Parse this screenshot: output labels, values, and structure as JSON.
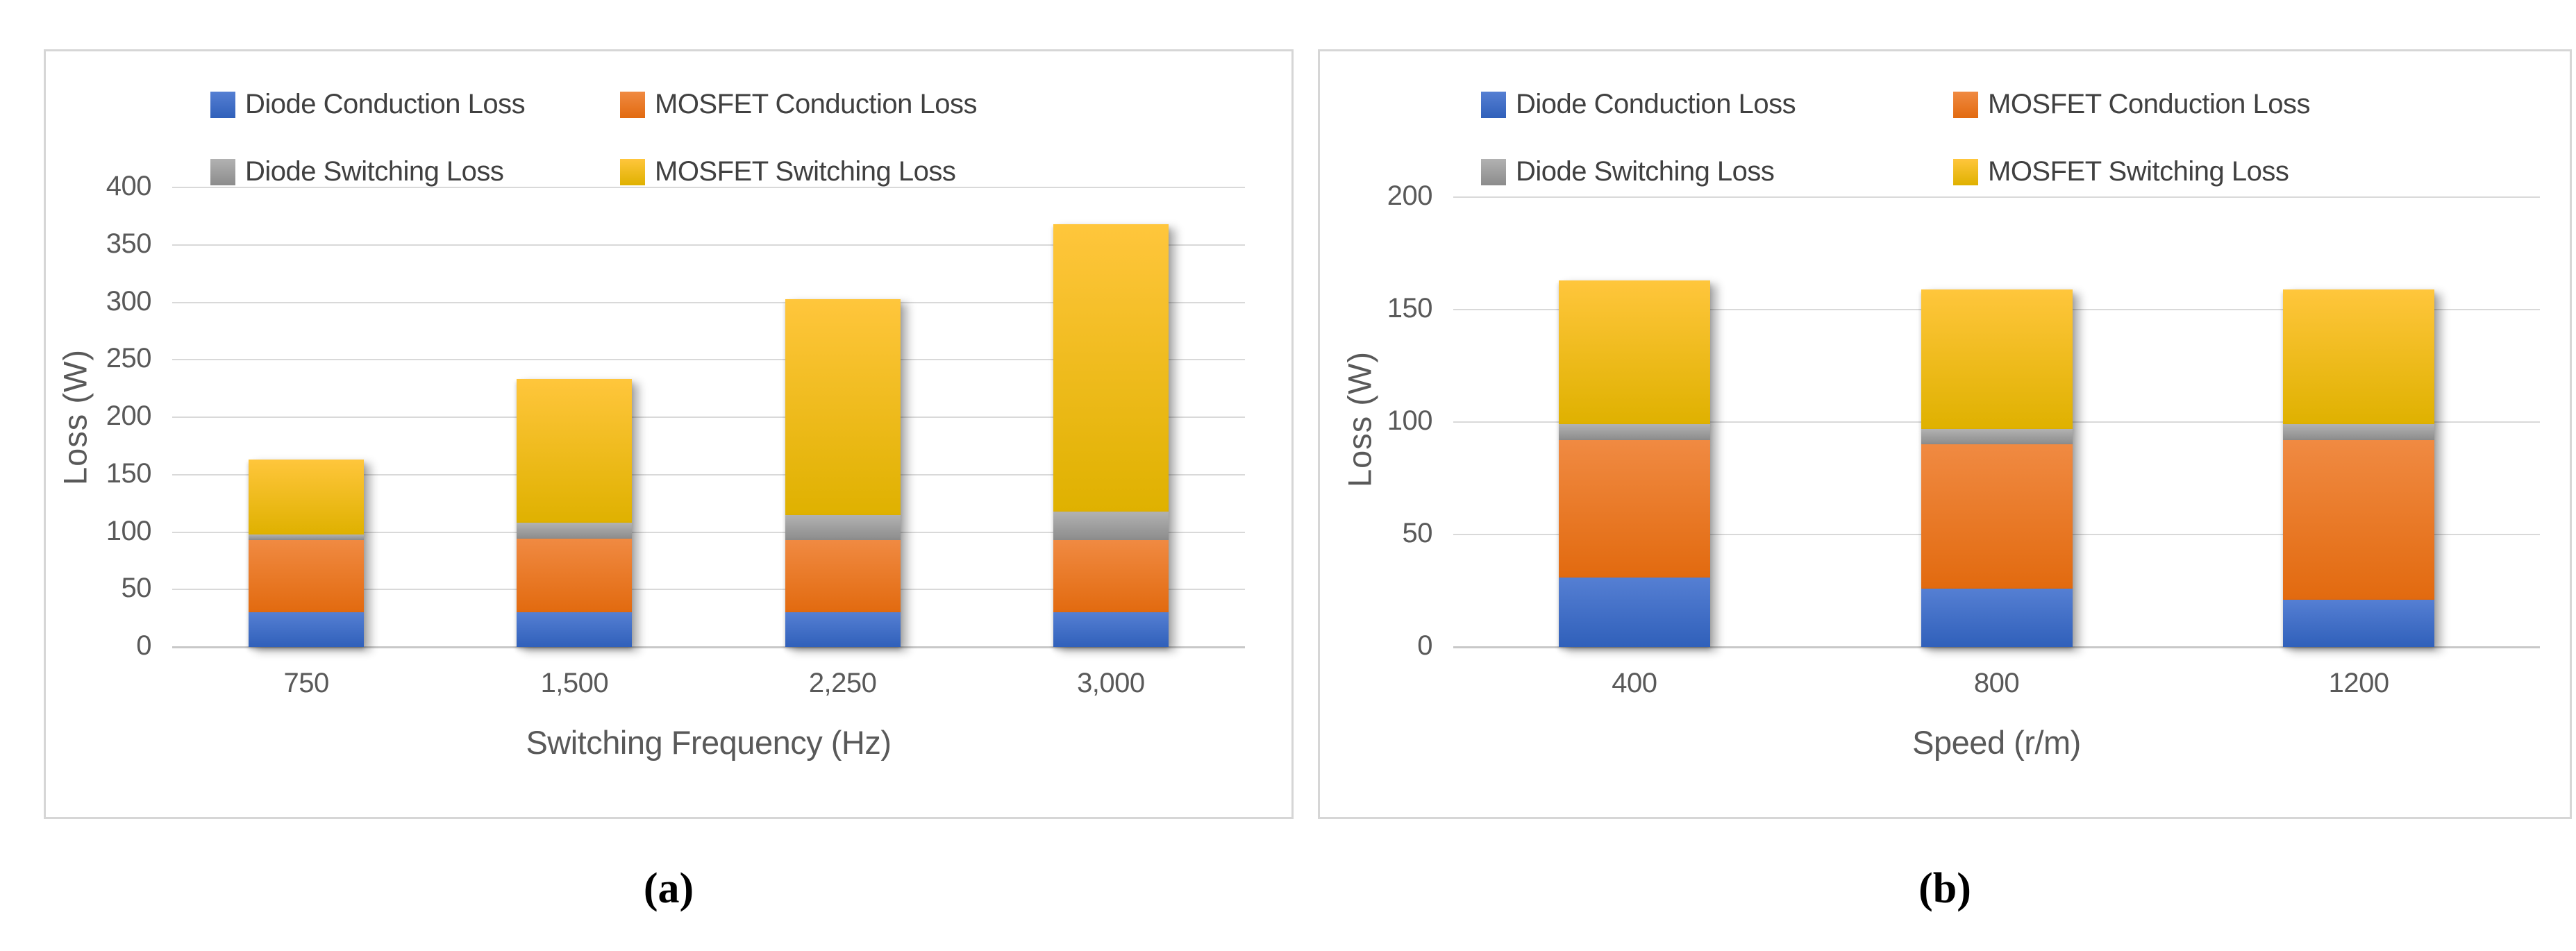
{
  "figure": {
    "background": "#ffffff",
    "captions": {
      "a": "(a)",
      "b": "(b)"
    }
  },
  "style": {
    "gridline_color": "#d9d9d9",
    "axis_line_color": "#c8c8c8",
    "tick_text_color": "#595959",
    "legend_text_color": "#404040",
    "panel_border_color": "#d6d6d6"
  },
  "series_legend": [
    {
      "name": "Diode Conduction Loss",
      "color": "#4472c4",
      "gradient_top": "#557fd3",
      "gradient_bottom": "#3060ba"
    },
    {
      "name": "MOSFET Conduction Loss",
      "color": "#ed7d31",
      "gradient_top": "#f08a42",
      "gradient_bottom": "#e26a0f"
    },
    {
      "name": "Diode Switching Loss",
      "color": "#a5a5a5",
      "gradient_top": "#b2b2b2",
      "gradient_bottom": "#8c8c8c"
    },
    {
      "name": "MOSFET Switching Loss",
      "color": "#ffc000",
      "gradient_top": "#ffc63c",
      "gradient_bottom": "#dfb100"
    }
  ],
  "chart_data": [
    {
      "id": "a",
      "type": "bar",
      "stacked": true,
      "title": "",
      "xlabel": "Switching Frequency (Hz)",
      "ylabel": "Loss (W)",
      "categories": [
        "750",
        "1,500",
        "2,250",
        "3,000"
      ],
      "series": [
        {
          "name": "Diode Conduction Loss",
          "values": [
            30,
            30,
            30,
            30
          ]
        },
        {
          "name": "MOSFET Conduction Loss",
          "values": [
            63,
            64,
            63,
            63
          ]
        },
        {
          "name": "Diode Switching Loss",
          "values": [
            5,
            14,
            22,
            25
          ]
        },
        {
          "name": "MOSFET Switching Loss",
          "values": [
            65,
            125,
            188,
            250
          ]
        }
      ],
      "stack_totals": [
        163,
        233,
        303,
        368
      ],
      "ylim": [
        0,
        400
      ],
      "ytick_step": 50,
      "yticks": [
        "0",
        "50",
        "100",
        "150",
        "200",
        "250",
        "300",
        "350",
        "400"
      ],
      "grid": true,
      "legend_position": "top",
      "caption": "(a)"
    },
    {
      "id": "b",
      "type": "bar",
      "stacked": true,
      "title": "",
      "xlabel": "Speed (r/m)",
      "ylabel": "Loss (W)",
      "categories": [
        "400",
        "800",
        "1200"
      ],
      "series": [
        {
          "name": "Diode Conduction Loss",
          "values": [
            31,
            26,
            21
          ]
        },
        {
          "name": "MOSFET Conduction Loss",
          "values": [
            61,
            64,
            71
          ]
        },
        {
          "name": "Diode Switching Loss",
          "values": [
            7,
            7,
            7
          ]
        },
        {
          "name": "MOSFET Switching Loss",
          "values": [
            64,
            62,
            60
          ]
        }
      ],
      "stack_totals": [
        163,
        159,
        159
      ],
      "ylim": [
        0,
        200
      ],
      "ytick_step": 50,
      "yticks": [
        "0",
        "50",
        "100",
        "150",
        "200"
      ],
      "grid": true,
      "legend_position": "top",
      "caption": "(b)"
    }
  ]
}
